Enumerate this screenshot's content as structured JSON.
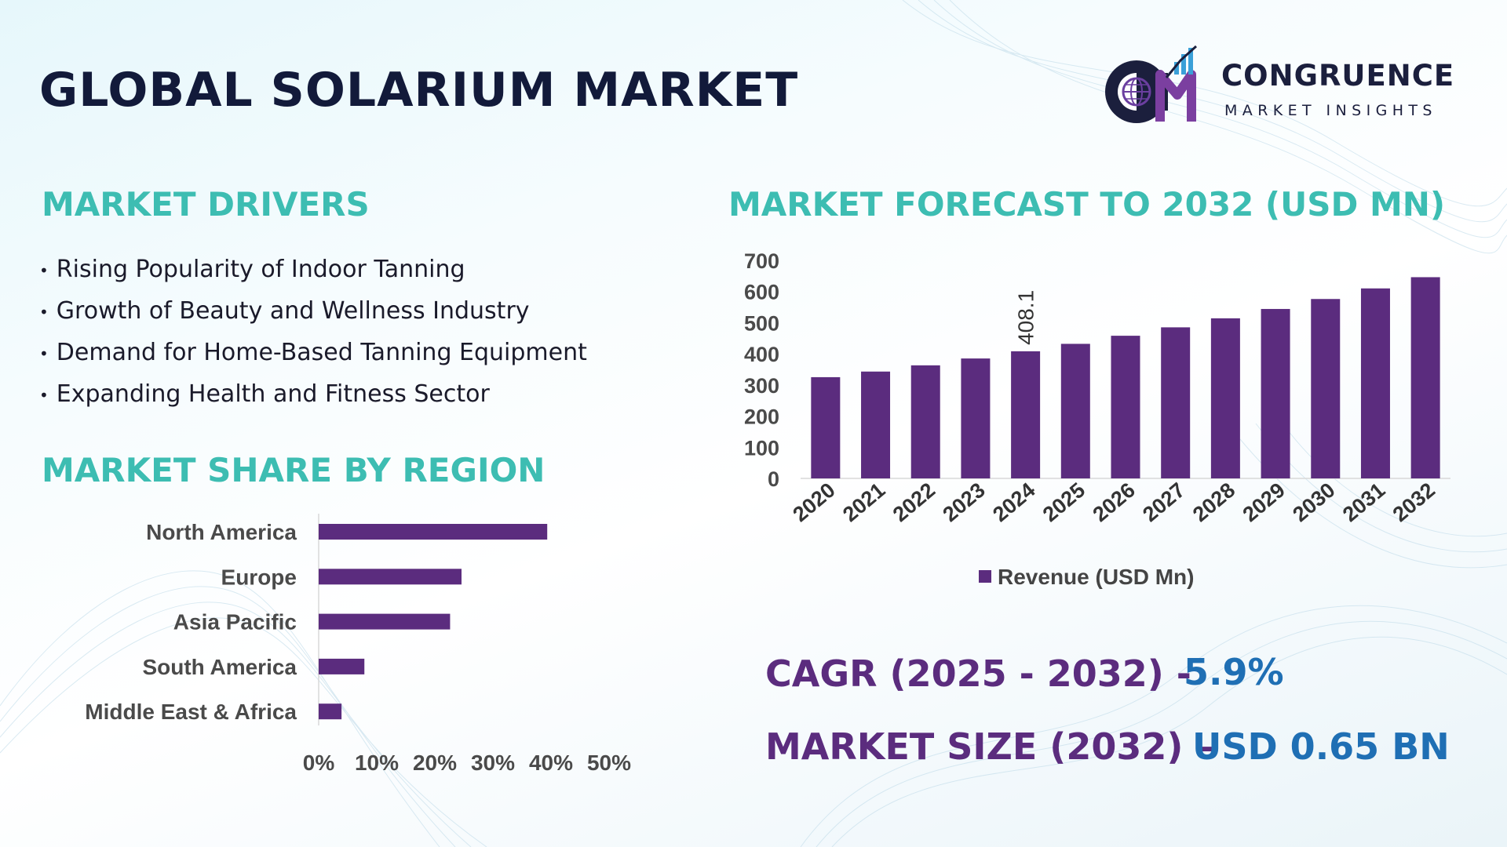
{
  "title": "GLOBAL SOLARIUM MARKET",
  "logo": {
    "name": "CONGRUENCE",
    "tagline": "MARKET INSIGHTS",
    "icon": "cmi-globe-chart-logo"
  },
  "drivers": {
    "title": "MARKET DRIVERS",
    "items": [
      "Rising Popularity of Indoor Tanning",
      "Growth of Beauty and Wellness Industry",
      "Demand for Home-Based Tanning Equipment",
      "Expanding Health and Fitness Sector"
    ]
  },
  "forecast": {
    "title": "MARKET FORECAST TO 2032 (USD MN)"
  },
  "region": {
    "title": "MARKET SHARE BY REGION"
  },
  "chart_data": [
    {
      "type": "bar",
      "title": "MARKET FORECAST TO 2032 (USD MN)",
      "categories": [
        "2020",
        "2021",
        "2022",
        "2023",
        "2024",
        "2025",
        "2026",
        "2027",
        "2028",
        "2029",
        "2030",
        "2031",
        "2032"
      ],
      "series": [
        {
          "name": "Revenue (USD Mn)",
          "values": [
            325,
            343,
            363,
            385,
            408.1,
            432,
            458,
            485,
            514,
            544,
            576,
            610,
            646
          ]
        }
      ],
      "data_labels": [
        {
          "category": "2024",
          "text": "408.1"
        }
      ],
      "ylim": [
        0,
        700
      ],
      "yticks": [
        "0",
        "100",
        "200",
        "300",
        "400",
        "500",
        "600",
        "700"
      ],
      "legend": "bottom",
      "color": "#5b2c7e"
    },
    {
      "type": "bar",
      "orientation": "horizontal",
      "title": "MARKET SHARE BY REGION",
      "categories": [
        "North America",
        "Europe",
        "Asia Pacific",
        "South America",
        "Middle East & Africa"
      ],
      "values": [
        40,
        25,
        23,
        8,
        4
      ],
      "unit": "%",
      "xlim": [
        0,
        50
      ],
      "xticks": [
        "0%",
        "10%",
        "20%",
        "30%",
        "40%",
        "50%"
      ],
      "color": "#5b2c7e"
    }
  ],
  "stats": {
    "cagr_label": "CAGR (2025 - 2032) -",
    "cagr_value": "5.9%",
    "size_label": "MARKET SIZE (2032) –",
    "size_value": "USD 0.65 BN"
  },
  "colors": {
    "title": "#121a3a",
    "section": "#3dbdb2",
    "bar": "#5b2c7e",
    "value": "#1f6fb4"
  }
}
